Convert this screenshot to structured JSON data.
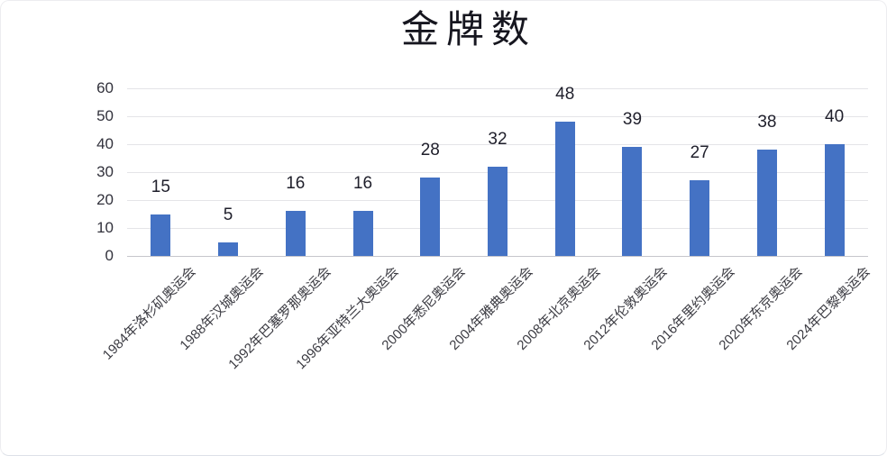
{
  "chart_data": {
    "type": "bar",
    "title": "金牌数",
    "categories": [
      "1984年洛杉矶奥运会",
      "1988年汉城奥运会",
      "1992年巴塞罗那奥运会",
      "1996年亚特兰大奥运会",
      "2000年悉尼奥运会",
      "2004年雅典奥运会",
      "2008年北京奥运会",
      "2012年伦敦奥运会",
      "2016年里约奥运会",
      "2020年东京奥运会",
      "2024年巴黎奥运会"
    ],
    "values": [
      15,
      5,
      16,
      16,
      28,
      32,
      48,
      39,
      27,
      38,
      40
    ],
    "yticks": [
      0,
      10,
      20,
      30,
      40,
      50,
      60
    ],
    "ylim": [
      0,
      60
    ],
    "xlabel": "",
    "ylabel": "",
    "grid": true,
    "legend_position": "none",
    "x_label_rotation_degrees": 45,
    "colors": {
      "bar": "#4472C4",
      "title": "#16161f",
      "value_label": "#1f1f2b",
      "y_tick_label": "#32323c",
      "x_tick_label": "#3b3b42",
      "gridline": "#e4e4e8",
      "axis_line": "#c6c6cc",
      "background": "#ffffff"
    }
  }
}
